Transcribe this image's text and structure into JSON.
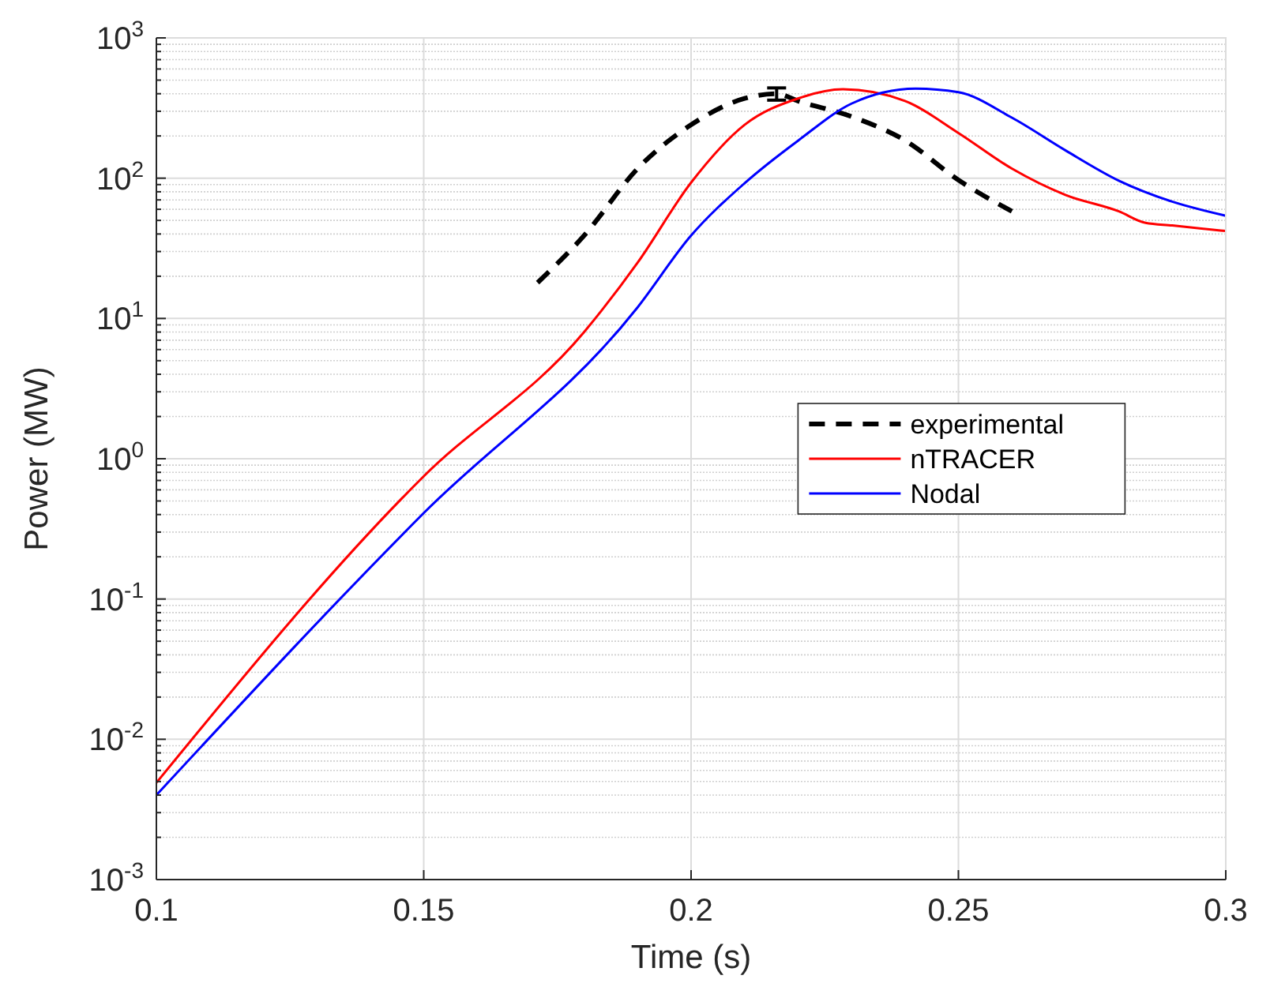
{
  "chart_data": {
    "type": "line",
    "xlabel": "Time (s)",
    "ylabel": "Power (MW)",
    "log": "y",
    "grid": true,
    "legend": "right",
    "xlim": [
      0.1,
      0.3
    ],
    "xticks": [
      0.1,
      0.15,
      0.2,
      0.25,
      0.3
    ],
    "ylim": [
      0.001,
      1000
    ],
    "yticks": [
      {
        "value": 0.001,
        "label": "10$^{-3}$"
      },
      {
        "value": 0.01,
        "label": "10$^{-2}$"
      },
      {
        "value": 0.1,
        "label": "10$^{-1}$"
      },
      {
        "value": 1,
        "label": "10$^{0}$"
      },
      {
        "value": 10,
        "label": "10$^{1}$"
      },
      {
        "value": 100,
        "label": "10$^{2}$"
      },
      {
        "value": 1000,
        "label": "10$^{3}$"
      }
    ],
    "series": [
      {
        "name": "experimental",
        "color": "#000000",
        "line_style": "dashed",
        "x": [
          0.1713,
          0.18,
          0.19,
          0.2,
          0.21,
          0.216,
          0.22,
          0.23,
          0.24,
          0.25,
          0.26
        ],
        "values": [
          18,
          39,
          117,
          240,
          370,
          400,
          355,
          275,
          186,
          97,
          58
        ],
        "errors": [
          null,
          null,
          null,
          null,
          null,
          40,
          null,
          null,
          null,
          null,
          null
        ]
      },
      {
        "name": "nTRACER",
        "color": "#ff0000",
        "line_style": "solid",
        "x": [
          0.1,
          0.15,
          0.18,
          0.19,
          0.2,
          0.21,
          0.22,
          0.2284,
          0.24,
          0.25,
          0.26,
          0.27,
          0.28,
          0.285,
          0.29,
          0.3
        ],
        "values": [
          0.0049,
          0.75,
          8,
          25,
          93,
          240,
          370,
          430,
          355,
          210,
          117,
          76,
          58,
          48,
          46,
          42
        ]
      },
      {
        "name": "Nodal",
        "color": "#0000ff",
        "line_style": "solid",
        "x": [
          0.1,
          0.15,
          0.19,
          0.2,
          0.21,
          0.22,
          0.23,
          0.242,
          0.25,
          0.26,
          0.27,
          0.28,
          0.29,
          0.3
        ],
        "values": [
          0.004,
          0.41,
          12,
          39,
          92,
          185,
          340,
          435,
          410,
          270,
          158,
          96,
          68,
          54
        ]
      }
    ]
  }
}
